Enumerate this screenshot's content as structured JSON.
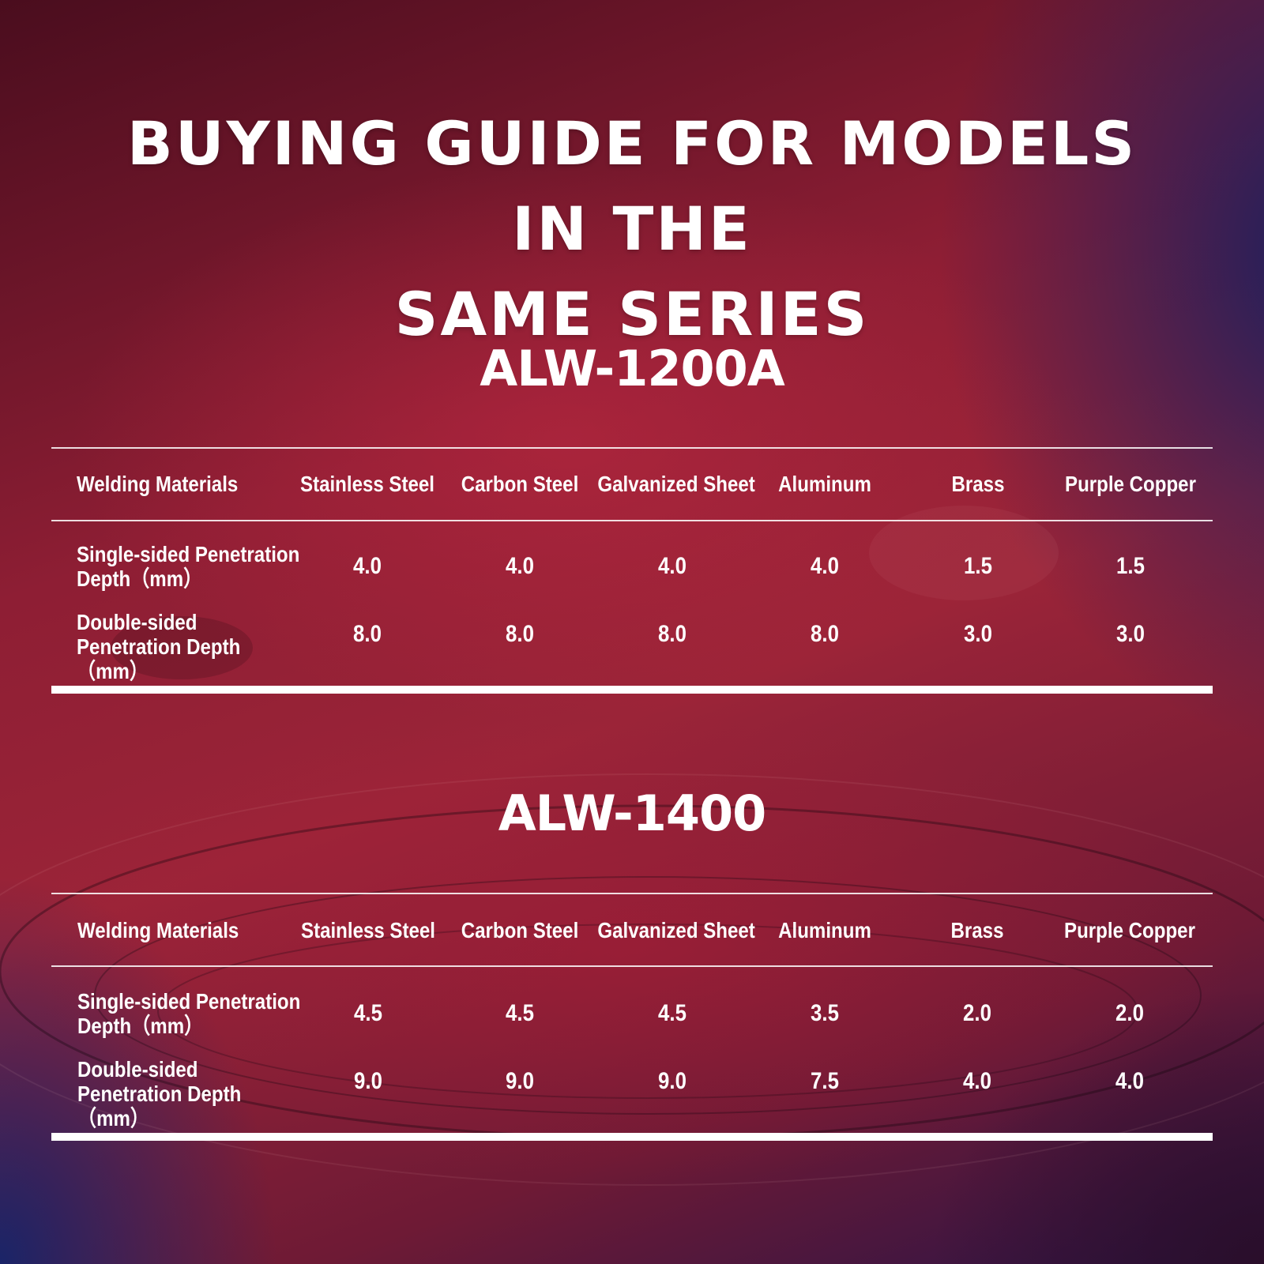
{
  "title": {
    "line1": "BUYING GUIDE FOR MODELS IN THE",
    "line2": "SAME SERIES"
  },
  "columns": [
    "Welding Materials",
    "Stainless Steel",
    "Carbon Steel",
    "Galvanized Sheet",
    "Aluminum",
    "Brass",
    "Purple Copper"
  ],
  "row_labels": {
    "single": "Single-sided Penetration Depth（mm）",
    "double": "Double-sided Penetration Depth（mm）"
  },
  "tables": [
    {
      "model": "ALW-1200A",
      "single": [
        "4.0",
        "4.0",
        "4.0",
        "4.0",
        "1.5",
        "1.5"
      ],
      "double": [
        "8.0",
        "8.0",
        "8.0",
        "8.0",
        "3.0",
        "3.0"
      ]
    },
    {
      "model": "ALW-1400",
      "single": [
        "4.5",
        "4.5",
        "4.5",
        "3.5",
        "2.0",
        "2.0"
      ],
      "double": [
        "9.0",
        "9.0",
        "9.0",
        "7.5",
        "4.0",
        "4.0"
      ]
    }
  ]
}
